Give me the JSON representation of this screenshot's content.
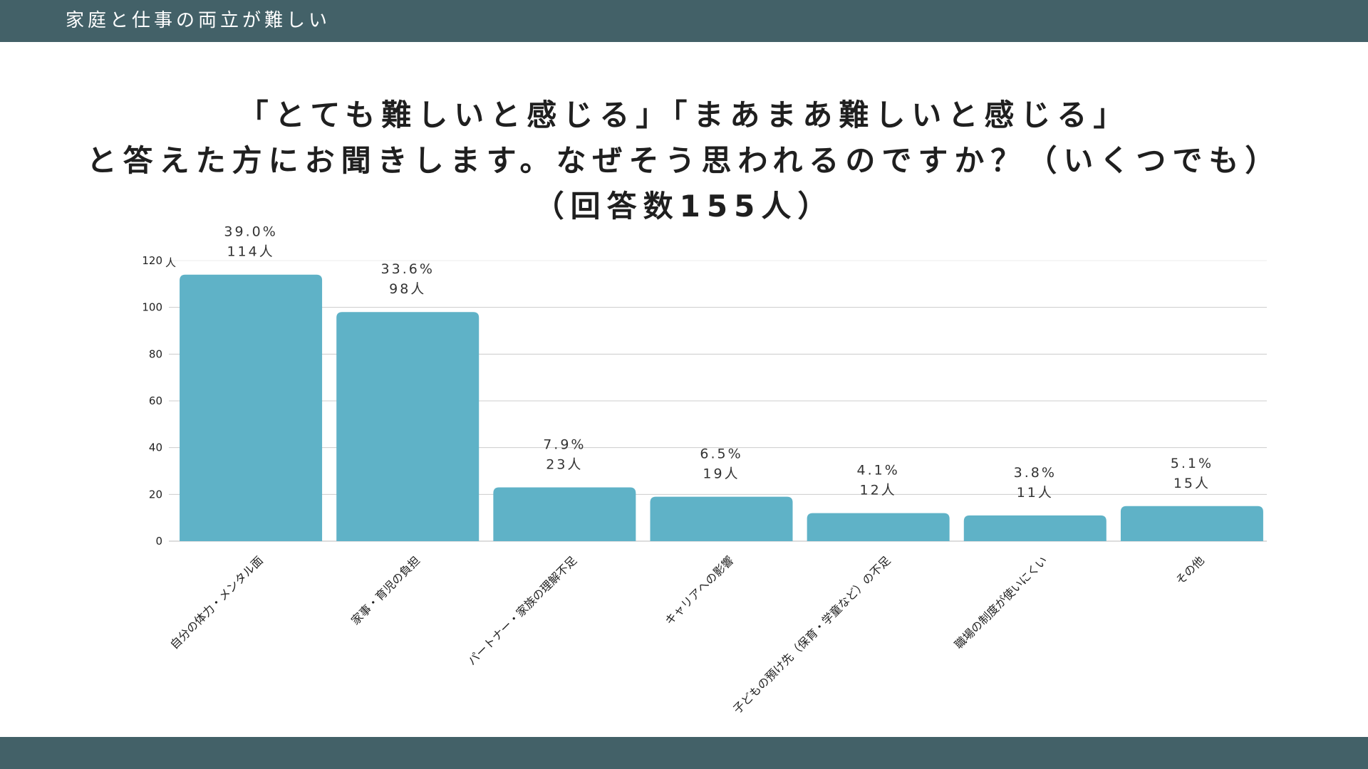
{
  "header": {
    "title": "家庭と仕事の両立が難しい"
  },
  "question": {
    "lines": [
      "「とても難しいと感じる」「まあまあ難しいと感じる」",
      "と答えた方にお聞きします。なぜそう思われるのですか？（いくつでも）",
      "（回答数155人）"
    ]
  },
  "colors": {
    "bar": "#5fb2c7",
    "header": "#436168",
    "grid": "#cccccc"
  },
  "chart_data": {
    "type": "bar",
    "categories": [
      "自分の体力・メンタル面",
      "家事・育児の負担",
      "パートナー・家族の理解不足",
      "キャリアへの影響",
      "子どもの預け先（保育・学童など）の不足",
      "職場の制度が使いにくい",
      "その他"
    ],
    "values": [
      114,
      98,
      23,
      19,
      12,
      11,
      15
    ],
    "percent_labels": [
      "39.0%",
      "33.6%",
      "7.9%",
      "6.5%",
      "4.1%",
      "3.8%",
      "5.1%"
    ],
    "count_labels": [
      "114人",
      "98人",
      "23人",
      "19人",
      "12人",
      "11人",
      "15人"
    ],
    "yticks": [
      0,
      20,
      40,
      60,
      80,
      100,
      120
    ],
    "ytick_labels": [
      "0",
      "20",
      "40",
      "60",
      "80",
      "100",
      "120"
    ],
    "yunit": "人",
    "ylim": [
      0,
      120
    ],
    "grid": true
  }
}
